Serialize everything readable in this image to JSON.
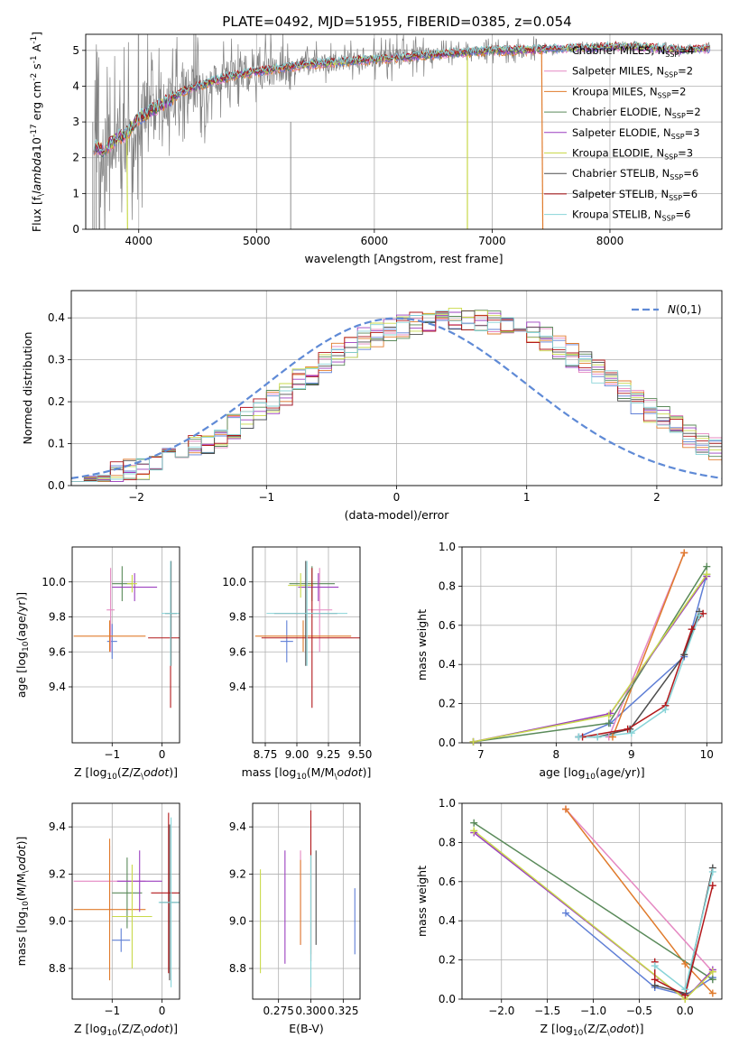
{
  "figure_title": "PLATE=0492, MJD=51955, FIBERID=0385, z=0.054",
  "colors": {
    "Chabrier MILES": "#5f7fd6",
    "Salpeter MILES": "#e588c2",
    "Kroupa MILES": "#e07b2c",
    "Chabrier ELODIE": "#5a8a5a",
    "Salpeter ELODIE": "#9b3fbf",
    "Kroupa ELODIE": "#c9d94a",
    "Chabrier STELIB": "#4d4d4d",
    "Salpeter STELIB": "#b2181b",
    "Kroupa STELIB": "#88d4d8",
    "normal": "#5f8ad6",
    "data": "#808080"
  },
  "chart_data": [
    {
      "id": "spectrum",
      "type": "line",
      "title": "PLATE=0492, MJD=51955, FIBERID=0385, z=0.054",
      "xlabel": "wavelength [Angstrom, rest frame]",
      "ylabel": "Flux [f$_\\lambda$10$^{-17}$ erg cm$^{-2}$ s$^{-1}$ A$^{-1}$]",
      "xlim": [
        3550,
        8950
      ],
      "ylim": [
        0,
        5.45
      ],
      "xticks": [
        4000,
        5000,
        6000,
        7000,
        8000
      ],
      "yticks": [
        0,
        1,
        2,
        3,
        4,
        5
      ],
      "legend_loc": "upper right",
      "legend": [
        {
          "base": "Chabrier MILES, N",
          "sub": "SSP",
          "tail": "=4"
        },
        {
          "base": "Salpeter MILES, N",
          "sub": "SSP",
          "tail": "=2"
        },
        {
          "base": "Kroupa MILES, N",
          "sub": "SSP",
          "tail": "=2"
        },
        {
          "base": "Chabrier ELODIE, N",
          "sub": "SSP",
          "tail": "=2"
        },
        {
          "base": "Salpeter ELODIE, N",
          "sub": "SSP",
          "tail": "=3"
        },
        {
          "base": "Kroupa ELODIE, N",
          "sub": "SSP",
          "tail": "=3"
        },
        {
          "base": "Chabrier STELIB, N",
          "sub": "SSP",
          "tail": "=6"
        },
        {
          "base": "Salpeter STELIB, N",
          "sub": "SSP",
          "tail": "=6"
        },
        {
          "base": "Kroupa STELIB, N",
          "sub": "SSP",
          "tail": "=6"
        }
      ],
      "model_continuum": {
        "x": [
          3620,
          3700,
          3800,
          3900,
          4000,
          4100,
          4200,
          4300,
          4400,
          4500,
          4600,
          4700,
          4800,
          4900,
          5000,
          5200,
          5400,
          5600,
          5800,
          6000,
          6200,
          6400,
          6600,
          6800,
          7000,
          7200,
          7400,
          7600,
          7800,
          8000,
          8200,
          8400,
          8600,
          8800
        ],
        "y": [
          2.3,
          2.2,
          2.5,
          2.7,
          3.1,
          3.3,
          3.5,
          3.7,
          3.9,
          4.0,
          4.1,
          4.2,
          4.3,
          4.35,
          4.4,
          4.5,
          4.6,
          4.65,
          4.7,
          4.75,
          4.8,
          4.85,
          4.9,
          4.95,
          5.0,
          5.0,
          5.02,
          5.05,
          5.05,
          5.1,
          5.1,
          5.05,
          5.0,
          5.05
        ]
      },
      "model_segments": [
        {
          "x": [
            3900,
            3905
          ],
          "y": [
            2.6,
            0
          ]
        },
        {
          "x": [
            6790,
            6790
          ],
          "y": [
            4.9,
            0
          ]
        },
        {
          "x": [
            7420,
            7430
          ],
          "y": [
            5.0,
            0
          ]
        }
      ]
    },
    {
      "id": "residuals",
      "type": "histogram",
      "xlabel": "(data-model)/error",
      "ylabel": "Normed distribution",
      "xlim": [
        -2.5,
        2.5
      ],
      "ylim": [
        0,
        0.465
      ],
      "xticks": [
        -2,
        -1,
        0,
        1,
        2
      ],
      "yticks": [
        0.0,
        0.1,
        0.2,
        0.3,
        0.4
      ],
      "legend_loc": "upper right",
      "legend": [
        {
          "label": "$\\mathcal{N}(0,1)$"
        }
      ],
      "bin_start": -2.5,
      "bin_width": 0.1,
      "series_base": [
        0.03,
        0.03,
        0.03,
        0.03,
        0.035,
        0.04,
        0.05,
        0.06,
        0.075,
        0.09,
        0.1,
        0.12,
        0.14,
        0.16,
        0.18,
        0.2,
        0.22,
        0.25,
        0.27,
        0.29,
        0.31,
        0.33,
        0.35,
        0.36,
        0.37,
        0.38,
        0.39,
        0.39,
        0.4,
        0.4,
        0.4,
        0.39,
        0.39,
        0.38,
        0.37,
        0.36,
        0.35,
        0.33,
        0.31,
        0.29,
        0.27,
        0.25,
        0.22,
        0.2,
        0.18,
        0.16,
        0.14,
        0.12,
        0.1,
        0.09,
        0.075,
        0.06,
        0.05,
        0.04,
        0.035,
        0.03,
        0.03,
        0.03,
        0.03,
        0.03
      ]
    },
    {
      "id": "age_vs_Z",
      "type": "errorbar",
      "xlabel": "Z [log$_{10}$(Z/Z$_\\odot$)]",
      "ylabel": "age  [log$_{10}$(age/yr)]",
      "xlim": [
        -1.8,
        0.35
      ],
      "ylim": [
        9.08,
        10.2
      ],
      "xticks": [
        -1,
        0
      ],
      "yticks": [
        9.4,
        9.6,
        9.8,
        10.0
      ],
      "points": [
        {
          "model": "Chabrier MILES",
          "x": -1.0,
          "y": 9.66,
          "xerr": 0.1,
          "yerr": 0.1
        },
        {
          "model": "Salpeter MILES",
          "x": -1.03,
          "y": 9.84,
          "xerr": 0.08,
          "yerr": 0.24
        },
        {
          "model": "Kroupa MILES",
          "x": -1.05,
          "y": 9.69,
          "xerr": 0.72,
          "yerr": 0.09
        },
        {
          "model": "Chabrier ELODIE",
          "x": -0.8,
          "y": 9.99,
          "xerr": 0.2,
          "yerr": 0.1
        },
        {
          "model": "Salpeter ELODIE",
          "x": -0.55,
          "y": 9.97,
          "xerr": 0.45,
          "yerr": 0.08
        },
        {
          "model": "Kroupa ELODIE",
          "x": -0.6,
          "y": 9.99,
          "xerr": 0.1,
          "yerr": 0.05
        },
        {
          "model": "Chabrier STELIB",
          "x": 0.18,
          "y": 9.82,
          "xerr": 0.12,
          "yerr": 0.3
        },
        {
          "model": "Salpeter STELIB",
          "x": 0.17,
          "y": 9.68,
          "xerr": 0.45,
          "yerr": 0.4
        },
        {
          "model": "Kroupa STELIB",
          "x": 0.17,
          "y": 9.82,
          "xerr": 0.18,
          "yerr": 0.3
        }
      ]
    },
    {
      "id": "age_vs_mass",
      "type": "errorbar",
      "xlabel": "mass [log$_{10}$(M/M$_\\odot$)]",
      "ylabel": "",
      "xlim": [
        8.65,
        9.5
      ],
      "ylim": [
        9.08,
        10.2
      ],
      "xticks": [
        8.75,
        9.0,
        9.25,
        9.5
      ],
      "yticks": [
        9.4,
        9.6,
        9.8,
        10.0
      ],
      "points": [
        {
          "model": "Chabrier MILES",
          "x": 8.92,
          "y": 9.66,
          "xerr": 0.05,
          "yerr": 0.12
        },
        {
          "model": "Salpeter MILES",
          "x": 9.18,
          "y": 9.84,
          "xerr": 0.1,
          "yerr": 0.24
        },
        {
          "model": "Kroupa MILES",
          "x": 9.05,
          "y": 9.69,
          "xerr": 0.38,
          "yerr": 0.09
        },
        {
          "model": "Chabrier ELODIE",
          "x": 9.12,
          "y": 9.99,
          "xerr": 0.18,
          "yerr": 0.1
        },
        {
          "model": "Salpeter ELODIE",
          "x": 9.17,
          "y": 9.97,
          "xerr": 0.16,
          "yerr": 0.08
        },
        {
          "model": "Kroupa ELODIE",
          "x": 9.03,
          "y": 9.98,
          "xerr": 0.1,
          "yerr": 0.07
        },
        {
          "model": "Chabrier STELIB",
          "x": 9.07,
          "y": 9.82,
          "xerr": 0.25,
          "yerr": 0.3
        },
        {
          "model": "Salpeter STELIB",
          "x": 9.12,
          "y": 9.68,
          "xerr": 0.4,
          "yerr": 0.4
        },
        {
          "model": "Kroupa STELIB",
          "x": 9.08,
          "y": 9.82,
          "xerr": 0.32,
          "yerr": 0.3
        }
      ]
    },
    {
      "id": "mass_weight_vs_age",
      "type": "line",
      "xlabel": "age  [log$_{10}$(age/yr)]",
      "ylabel": "mass weight",
      "xlim": [
        6.75,
        10.2
      ],
      "ylim": [
        0,
        1
      ],
      "xticks": [
        7,
        8,
        9,
        10
      ],
      "yticks": [
        0.0,
        0.2,
        0.4,
        0.6,
        0.8,
        1.0
      ],
      "series": [
        {
          "model": "Chabrier MILES",
          "x": [
            8.3,
            8.72,
            9.7,
            10.0
          ],
          "y": [
            0.03,
            0.1,
            0.44,
            0.86
          ]
        },
        {
          "model": "Salpeter MILES",
          "x": [
            8.7,
            9.7
          ],
          "y": [
            0.03,
            0.97
          ]
        },
        {
          "model": "Kroupa MILES",
          "x": [
            8.75,
            9.7
          ],
          "y": [
            0.03,
            0.97
          ]
        },
        {
          "model": "Chabrier ELODIE",
          "x": [
            6.9,
            8.7,
            10.0
          ],
          "y": [
            0.005,
            0.1,
            0.9
          ]
        },
        {
          "model": "Salpeter ELODIE",
          "x": [
            6.9,
            8.72,
            10.0
          ],
          "y": [
            0.005,
            0.15,
            0.85
          ]
        },
        {
          "model": "Kroupa ELODIE",
          "x": [
            6.9,
            8.7,
            10.0
          ],
          "y": [
            0.005,
            0.14,
            0.86
          ]
        },
        {
          "model": "Chabrier STELIB",
          "x": [
            8.3,
            8.55,
            8.98,
            9.7,
            9.9
          ],
          "y": [
            0.03,
            0.03,
            0.07,
            0.45,
            0.67
          ]
        },
        {
          "model": "Salpeter STELIB",
          "x": [
            8.35,
            8.95,
            9.45,
            9.8,
            9.95
          ],
          "y": [
            0.03,
            0.07,
            0.19,
            0.58,
            0.66
          ]
        },
        {
          "model": "Kroupa STELIB",
          "x": [
            8.3,
            8.55,
            9.0,
            9.45,
            9.9
          ],
          "y": [
            0.03,
            0.03,
            0.05,
            0.17,
            0.65
          ]
        }
      ]
    },
    {
      "id": "mass_vs_Z",
      "type": "errorbar",
      "xlabel": "Z [log$_{10}$(Z/Z$_\\odot$)]",
      "ylabel": "mass [log$_{10}$(M/M$_\\odot$)]",
      "xlim": [
        -1.8,
        0.35
      ],
      "ylim": [
        8.67,
        9.5
      ],
      "xticks": [
        -1,
        0
      ],
      "yticks": [
        8.8,
        9.0,
        9.2,
        9.4
      ],
      "points": [
        {
          "model": "Chabrier MILES",
          "x": -0.82,
          "y": 8.92,
          "xerr": 0.18,
          "yerr": 0.05
        },
        {
          "model": "Salpeter MILES",
          "x": -1.05,
          "y": 9.17,
          "xerr": 0.72,
          "yerr": 0.15
        },
        {
          "model": "Kroupa MILES",
          "x": -1.05,
          "y": 9.05,
          "xerr": 0.72,
          "yerr": 0.3
        },
        {
          "model": "Chabrier ELODIE",
          "x": -0.7,
          "y": 9.12,
          "xerr": 0.3,
          "yerr": 0.15
        },
        {
          "model": "Salpeter ELODIE",
          "x": -0.45,
          "y": 9.17,
          "xerr": 0.45,
          "yerr": 0.13
        },
        {
          "model": "Kroupa ELODIE",
          "x": -0.6,
          "y": 9.02,
          "xerr": 0.4,
          "yerr": 0.22
        },
        {
          "model": "Chabrier STELIB",
          "x": 0.15,
          "y": 9.08,
          "xerr": 0.2,
          "yerr": 0.33
        },
        {
          "model": "Salpeter STELIB",
          "x": 0.13,
          "y": 9.12,
          "xerr": 0.35,
          "yerr": 0.34
        },
        {
          "model": "Kroupa STELIB",
          "x": 0.18,
          "y": 9.08,
          "xerr": 0.25,
          "yerr": 0.36
        }
      ]
    },
    {
      "id": "mass_vs_ebv",
      "type": "errorbar",
      "xlabel": "E(B-V)",
      "ylabel": "",
      "xlim": [
        0.255,
        0.338
      ],
      "ylim": [
        8.67,
        9.5
      ],
      "xticks": [
        0.275,
        0.3,
        0.325
      ],
      "yticks": [
        8.8,
        9.0,
        9.2,
        9.4
      ],
      "points": [
        {
          "model": "Chabrier MILES",
          "x": 0.334,
          "y": 9.0,
          "xerr": 0,
          "yerr": 0.14
        },
        {
          "model": "Salpeter MILES",
          "x": 0.292,
          "y": 9.1,
          "xerr": 0,
          "yerr": 0.2
        },
        {
          "model": "Kroupa MILES",
          "x": 0.292,
          "y": 9.08,
          "xerr": 0,
          "yerr": 0.18
        },
        {
          "model": "Chabrier ELODIE",
          "x": 0.3,
          "y": 9.08,
          "xerr": 0,
          "yerr": 0.22
        },
        {
          "model": "Salpeter ELODIE",
          "x": 0.28,
          "y": 9.06,
          "xerr": 0,
          "yerr": 0.24
        },
        {
          "model": "Kroupa ELODIE",
          "x": 0.261,
          "y": 9.0,
          "xerr": 0,
          "yerr": 0.22
        },
        {
          "model": "Chabrier STELIB",
          "x": 0.304,
          "y": 9.1,
          "xerr": 0,
          "yerr": 0.2
        },
        {
          "model": "Salpeter STELIB",
          "x": 0.3,
          "y": 9.15,
          "xerr": 0,
          "yerr": 0.32
        },
        {
          "model": "Kroupa STELIB",
          "x": 0.3,
          "y": 9.0,
          "xerr": 0,
          "yerr": 0.28
        }
      ]
    },
    {
      "id": "mass_weight_vs_Z",
      "type": "line",
      "xlabel": "Z [log$_{10}$(Z/Z$_\\odot$)]",
      "ylabel": "mass weight",
      "xlim": [
        -2.43,
        0.4
      ],
      "ylim": [
        0,
        1
      ],
      "xticks": [
        -2.0,
        -1.5,
        -1.0,
        -0.5,
        0.0
      ],
      "yticks": [
        0.0,
        0.2,
        0.4,
        0.6,
        0.8,
        1.0
      ],
      "series": [
        {
          "model": "Chabrier MILES",
          "x": [
            -1.3,
            -0.33,
            0.0,
            0.3
          ],
          "y": [
            0.44,
            0.06,
            0.02,
            0.11
          ]
        },
        {
          "model": "Salpeter MILES",
          "x": [
            -1.3,
            0.3
          ],
          "y": [
            0.97,
            0.14
          ]
        },
        {
          "model": "Kroupa MILES",
          "x": [
            -1.3,
            0.0,
            0.3
          ],
          "y": [
            0.97,
            0.18,
            0.03
          ]
        },
        {
          "model": "Chabrier ELODIE",
          "x": [
            -2.3,
            0.3
          ],
          "y": [
            0.9,
            0.1
          ]
        },
        {
          "model": "Salpeter ELODIE",
          "x": [
            -2.3,
            0.0,
            0.3
          ],
          "y": [
            0.85,
            0.0,
            0.15
          ]
        },
        {
          "model": "Kroupa ELODIE",
          "x": [
            -2.3,
            0.0,
            0.3
          ],
          "y": [
            0.86,
            0.0,
            0.14
          ]
        },
        {
          "model": "Chabrier STELIB",
          "x": [
            -0.33,
            0.0,
            0.3
          ],
          "y": [
            0.07,
            0.03,
            0.67
          ]
        },
        {
          "model": "Salpeter STELIB",
          "x": [
            -0.33,
            -0.33,
            0.0,
            0.3
          ],
          "y": [
            0.19,
            0.1,
            0.02,
            0.58
          ]
        },
        {
          "model": "Kroupa STELIB",
          "x": [
            -0.33,
            0.0,
            0.3
          ],
          "y": [
            0.17,
            0.05,
            0.65
          ]
        }
      ]
    }
  ]
}
